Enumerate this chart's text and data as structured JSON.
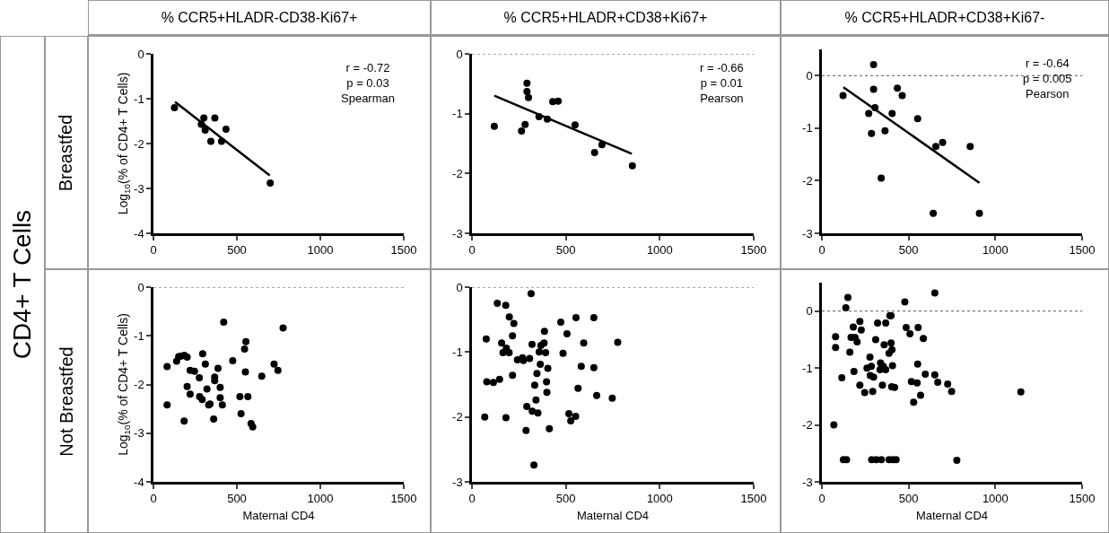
{
  "chart_data": [
    {
      "type": "scatter",
      "title": "% CCR5+HLADR-CD38-Ki67+",
      "ylabel": "Log$_{10}$(% of CD4+ T Cells)",
      "xlim": [
        0,
        1500
      ],
      "xticks": [
        0,
        500,
        1000,
        1500
      ],
      "ylim": [
        -4,
        0
      ],
      "yticks": [
        -4,
        -3,
        -2,
        -1,
        0
      ],
      "marker": "circle",
      "grid": false,
      "annotations": [
        "r = -0.72\np = 0.03\nSpearman",
        "Breastfed",
        "CD4+ T Cells"
      ],
      "series": [
        {
          "color": "#000000",
          "x": [
            126,
            302,
            368,
            287,
            310,
            435,
            344,
            408,
            700
          ],
          "values": [
            -1.2,
            -1.43,
            -1.43,
            -1.57,
            -1.7,
            -1.68,
            -1.95,
            -1.95,
            -2.88
          ]
        },
        {
          "type": "line",
          "marker": "none",
          "color": "#000000",
          "line_style": "solid",
          "x": [
            129,
            697
          ],
          "values": [
            -1.07,
            -2.71
          ]
        }
      ]
    },
    {
      "type": "scatter",
      "title": "% CCR5+HLADR+CD38+Ki67+",
      "xlim": [
        0,
        1500
      ],
      "xticks": [
        0,
        500,
        1000,
        1500
      ],
      "ylim": [
        -3,
        0
      ],
      "yticks": [
        -3,
        -2,
        -1,
        0
      ],
      "marker": "circle",
      "grid": false,
      "annotations": [
        "r = -0.66\np = 0.01\nPearson"
      ],
      "ref_lines": [
        {
          "axis": "y",
          "value": 0,
          "label": null,
          "line_style": "dotted"
        }
      ],
      "series": [
        {
          "color": "#000000",
          "x": [
            119,
            264,
            283,
            293,
            293,
            301,
            357,
            401,
            430,
            459,
            549,
            653,
            692,
            854
          ],
          "values": [
            -1.21,
            -1.29,
            -1.18,
            -0.49,
            -0.63,
            -0.73,
            -1.05,
            -1.09,
            -0.8,
            -0.79,
            -1.19,
            -1.65,
            -1.52,
            -1.87
          ]
        },
        {
          "type": "line",
          "marker": "none",
          "color": "#000000",
          "line_style": "solid",
          "x": [
            119,
            851
          ],
          "values": [
            -0.7,
            -1.67
          ]
        }
      ]
    },
    {
      "type": "scatter",
      "title": "% CCR5+HLADR+CD38+Ki67-",
      "xlim": [
        0,
        1500
      ],
      "xticks": [
        0,
        500,
        1000,
        1500
      ],
      "ylim": [
        -3,
        0.5
      ],
      "yticks": [
        -3,
        -2,
        -1,
        0
      ],
      "marker": "circle",
      "grid": false,
      "annotations": [
        "r = -0.64\np = 0.005\nPearson"
      ],
      "ref_lines": [
        {
          "axis": "y",
          "value": 0,
          "label": null,
          "line_style": "dotted"
        }
      ],
      "series": [
        {
          "color": "#000000",
          "x": [
            122,
            298,
            298,
            306,
            270,
            286,
            364,
            342,
            405,
            435,
            463,
            552,
            657,
            696,
            855,
            642,
            908
          ],
          "values": [
            -0.38,
            0.21,
            -0.26,
            -0.61,
            -0.72,
            -1.1,
            -1.05,
            -1.95,
            -0.72,
            -0.24,
            -0.38,
            -0.82,
            -1.35,
            -1.27,
            -1.35,
            -2.62,
            -2.62
          ]
        },
        {
          "type": "line",
          "marker": "none",
          "color": "#000000",
          "line_style": "solid",
          "x": [
            124,
            908
          ],
          "values": [
            -0.22,
            -2.04
          ]
        }
      ]
    },
    {
      "type": "scatter",
      "xlabel": "Maternal CD4",
      "ylabel": "Log$_{10}$(% of CD4+ T Cells)",
      "xlim": [
        0,
        1500
      ],
      "xticks": [
        0,
        500,
        1000,
        1500
      ],
      "ylim": [
        -4,
        0
      ],
      "yticks": [
        -4,
        -3,
        -2,
        -1,
        0
      ],
      "marker": "circle",
      "grid": false,
      "annotations": [
        "Not Breastfed"
      ],
      "ref_lines": [
        {
          "axis": "y",
          "value": 0,
          "label": null,
          "line_style": "dotted"
        }
      ],
      "series": [
        {
          "color": "#000000",
          "x": [
            82,
            82,
            139,
            151,
            164,
            185,
            202,
            184,
            202,
            220,
            220,
            246,
            275,
            277,
            292,
            295,
            311,
            321,
            331,
            339,
            361,
            367,
            367,
            387,
            400,
            400,
            413,
            421,
            475,
            518,
            525,
            546,
            554,
            551,
            566,
            585,
            595,
            649,
            723,
            746,
            777
          ],
          "values": [
            -1.63,
            -2.42,
            -1.52,
            -1.43,
            -1.42,
            -1.4,
            -1.44,
            -2.75,
            -2.04,
            -2.2,
            -1.71,
            -1.73,
            -1.86,
            -2.25,
            -2.31,
            -1.37,
            -1.58,
            -2.09,
            -2.42,
            -2.4,
            -2.71,
            -1.85,
            -1.92,
            -1.67,
            -2.06,
            -2.27,
            -2.42,
            -0.72,
            -1.51,
            -2.25,
            -2.6,
            -1.27,
            -1.12,
            -1.74,
            -2.25,
            -2.8,
            -2.87,
            -1.83,
            -1.58,
            -1.71,
            -0.84
          ]
        }
      ]
    },
    {
      "type": "scatter",
      "xlabel": "Maternal CD4",
      "xlim": [
        0,
        1500
      ],
      "xticks": [
        0,
        500,
        1000,
        1500
      ],
      "ylim": [
        -3,
        0
      ],
      "yticks": [
        -3,
        -2,
        -1,
        0
      ],
      "marker": "circle",
      "grid": false,
      "ref_lines": [
        {
          "axis": "y",
          "value": 0,
          "label": null,
          "line_style": "dotted"
        }
      ],
      "series": [
        {
          "color": "#000000",
          "x": [
            68,
            76,
            79,
            114,
            135,
            147,
            158,
            165,
            180,
            181,
            183,
            198,
            199,
            216,
            223,
            216,
            242,
            269,
            274,
            292,
            307,
            288,
            315,
            320,
            321,
            334,
            330,
            341,
            346,
            351,
            358,
            364,
            367,
            384,
            386,
            392,
            397,
            399,
            404,
            412,
            473,
            485,
            506,
            516,
            526,
            552,
            554,
            565,
            582,
            595,
            649,
            649,
            664,
            747,
            776
          ],
          "values": [
            -2.0,
            -0.8,
            -1.46,
            -1.47,
            -0.25,
            -1.42,
            -0.86,
            -1.01,
            -0.28,
            -2.01,
            -0.94,
            -1.01,
            -0.46,
            -0.75,
            -0.56,
            -1.36,
            -1.12,
            -1.09,
            -1.13,
            -1.84,
            -1.1,
            -2.21,
            -0.1,
            -0.88,
            -1.91,
            -1.51,
            -2.74,
            -1.74,
            -1.33,
            -1.94,
            -1.0,
            -1.19,
            -0.9,
            -0.86,
            -0.68,
            -1.01,
            -1.46,
            -1.62,
            -1.25,
            -2.18,
            -0.54,
            -1.02,
            -0.72,
            -1.95,
            -2.06,
            -1.99,
            -0.47,
            -1.56,
            -1.22,
            -0.86,
            -0.47,
            -1.24,
            -1.67,
            -1.71,
            -0.85
          ]
        }
      ]
    },
    {
      "type": "scatter",
      "xlabel": "Maternal CD4",
      "xlim": [
        0,
        1500
      ],
      "xticks": [
        0,
        500,
        1000,
        1500
      ],
      "ylim": [
        -3,
        0.5
      ],
      "yticks": [
        -3,
        -2,
        -1,
        0
      ],
      "marker": "circle",
      "grid": false,
      "ref_lines": [
        {
          "axis": "y",
          "value": 0,
          "label": null,
          "line_style": "dotted"
        }
      ],
      "series": [
        {
          "color": "#000000",
          "x": [
            69,
            79,
            79,
            115,
            138,
            150,
            124,
            142,
            161,
            168,
            181,
            185,
            191,
            203,
            219,
            227,
            219,
            247,
            260,
            277,
            279,
            285,
            293,
            298,
            310,
            321,
            287,
            313,
            343,
            338,
            335,
            354,
            349,
            359,
            368,
            368,
            387,
            392,
            399,
            399,
            404,
            407,
            402,
            419,
            387,
            428,
            409,
            478,
            486,
            508,
            516,
            529,
            549,
            555,
            552,
            569,
            585,
            596,
            651,
            651,
            668,
            725,
            748,
            778,
            1147
          ],
          "values": [
            -2.0,
            -0.45,
            -0.64,
            -1.17,
            0.06,
            0.24,
            -2.61,
            -2.61,
            -0.72,
            -0.46,
            -0.28,
            -1.06,
            -0.46,
            -0.54,
            -0.18,
            -0.33,
            -1.3,
            -1.43,
            -1.0,
            -0.81,
            -1.13,
            -0.97,
            -1.41,
            -1.16,
            -0.5,
            -0.21,
            -2.61,
            -2.61,
            -2.61,
            -0.91,
            -1.03,
            -0.97,
            -1.3,
            -0.59,
            -0.21,
            -1.03,
            -0.74,
            -0.08,
            -0.08,
            -0.56,
            -0.68,
            -0.96,
            -1.33,
            -1.34,
            -2.61,
            -2.61,
            -2.61,
            0.16,
            -0.29,
            -0.4,
            -1.24,
            -1.6,
            -1.26,
            -0.29,
            -0.93,
            -1.48,
            -0.48,
            -1.11,
            0.32,
            -1.12,
            -1.25,
            -1.28,
            -1.41,
            -2.62,
            -1.42
          ]
        }
      ]
    }
  ]
}
